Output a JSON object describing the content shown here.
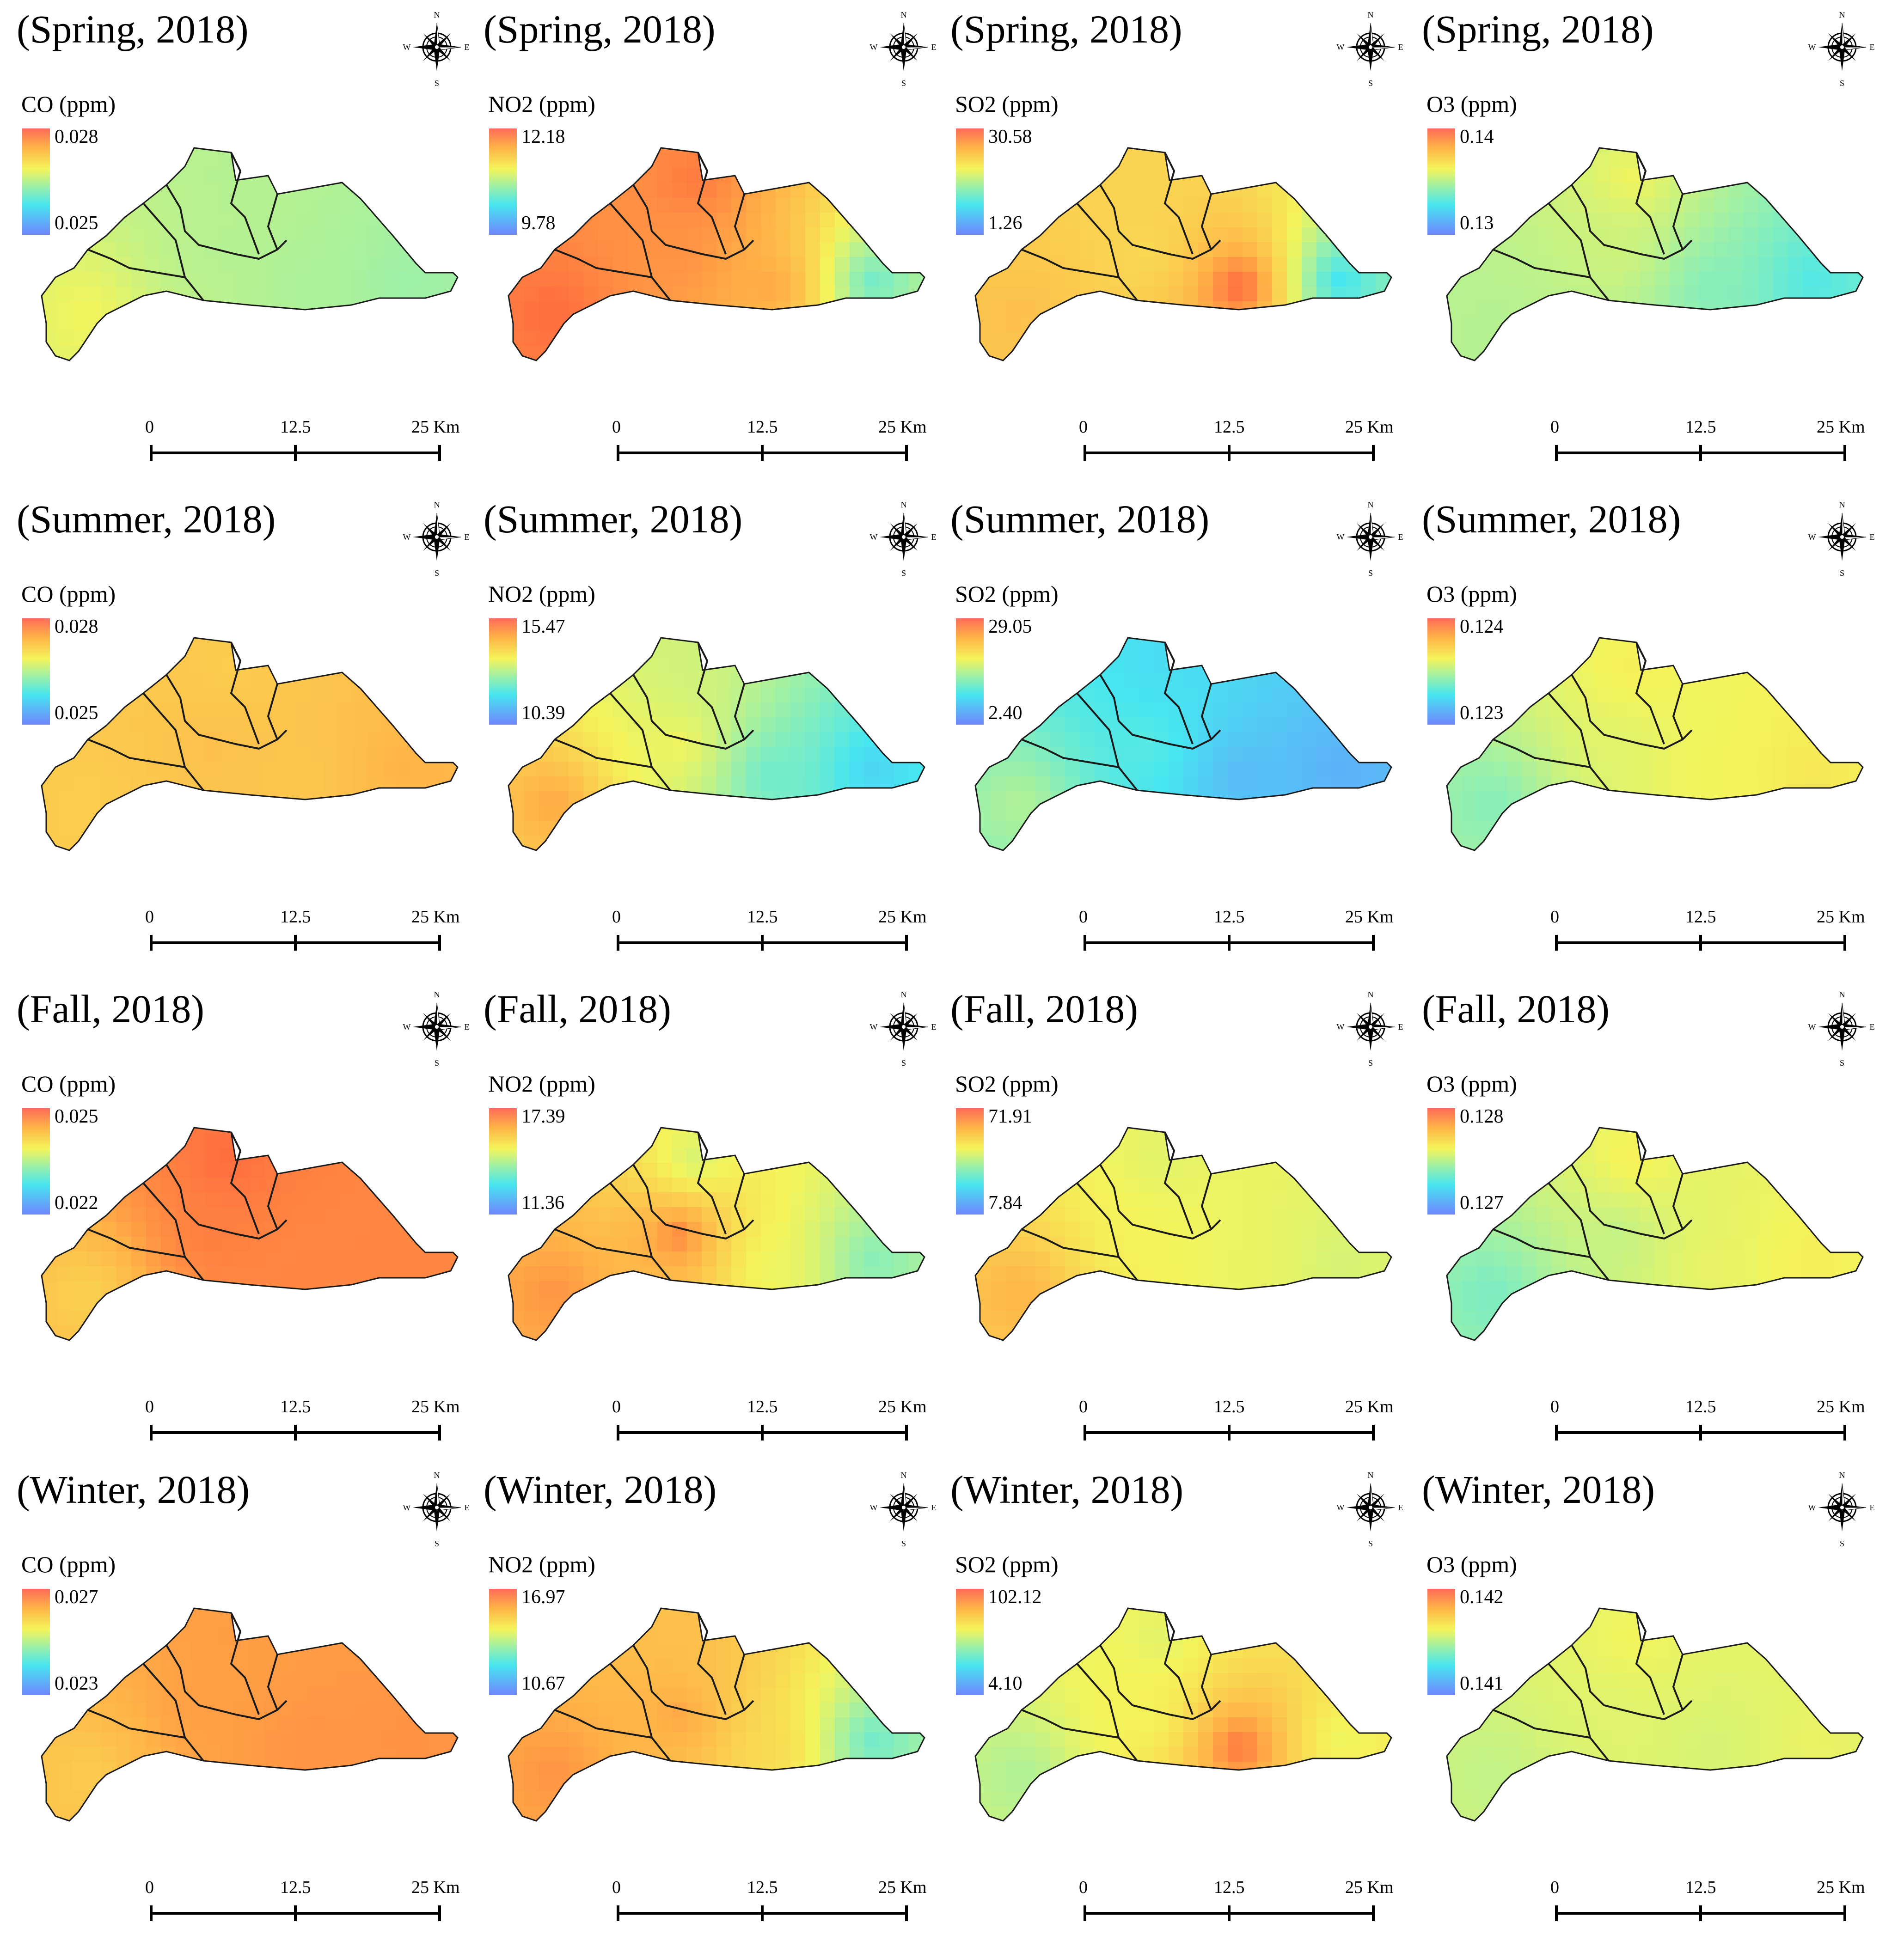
{
  "scale_bar": {
    "label_0": "0",
    "label_mid": "12.5",
    "label_end": "25 Km"
  },
  "compass": {
    "n": "N",
    "s": "S",
    "e": "E",
    "w": "W"
  },
  "boundary_color": "#1a1a1a",
  "panels": [
    {
      "season": "(Spring, 2018)",
      "legend_title": "CO (ppm)",
      "max": "0.028",
      "min": "0.025",
      "field": "co_spring"
    },
    {
      "season": "(Spring, 2018)",
      "legend_title": "NO2 (ppm)",
      "max": "12.18",
      "min": "9.78",
      "field": "no2_spring"
    },
    {
      "season": "(Spring, 2018)",
      "legend_title": "SO2 (ppm)",
      "max": "30.58",
      "min": "1.26",
      "field": "so2_spring"
    },
    {
      "season": "(Spring, 2018)",
      "legend_title": "O3 (ppm)",
      "max": "0.14",
      "min": "0.13",
      "field": "o3_spring"
    },
    {
      "season": "(Summer, 2018)",
      "legend_title": "CO (ppm)",
      "max": "0.028",
      "min": "0.025",
      "field": "co_summer"
    },
    {
      "season": "(Summer, 2018)",
      "legend_title": "NO2 (ppm)",
      "max": "15.47",
      "min": "10.39",
      "field": "no2_summer"
    },
    {
      "season": "(Summer, 2018)",
      "legend_title": "SO2 (ppm)",
      "max": "29.05",
      "min": "2.40",
      "field": "so2_summer"
    },
    {
      "season": "(Summer, 2018)",
      "legend_title": "O3 (ppm)",
      "max": "0.124",
      "min": "0.123",
      "field": "o3_summer"
    },
    {
      "season": "(Fall, 2018)",
      "legend_title": "CO (ppm)",
      "max": "0.025",
      "min": "0.022",
      "field": "co_fall"
    },
    {
      "season": "(Fall, 2018)",
      "legend_title": "NO2 (ppm)",
      "max": "17.39",
      "min": "11.36",
      "field": "no2_fall"
    },
    {
      "season": "(Fall, 2018)",
      "legend_title": "SO2 (ppm)",
      "max": "71.91",
      "min": "7.84",
      "field": "so2_fall"
    },
    {
      "season": "(Fall, 2018)",
      "legend_title": "O3 (ppm)",
      "max": "0.128",
      "min": "0.127",
      "field": "o3_fall"
    },
    {
      "season": "(Winter, 2018)",
      "legend_title": "CO (ppm)",
      "max": "0.027",
      "min": "0.023",
      "field": "co_winter"
    },
    {
      "season": "(Winter, 2018)",
      "legend_title": "NO2 (ppm)",
      "max": "16.97",
      "min": "10.67",
      "field": "no2_winter"
    },
    {
      "season": "(Winter, 2018)",
      "legend_title": "SO2 (ppm)",
      "max": "102.12",
      "min": "4.10",
      "field": "so2_winter"
    },
    {
      "season": "(Winter, 2018)",
      "legend_title": "O3 (ppm)",
      "max": "0.142",
      "min": "0.141",
      "field": "o3_winter"
    }
  ],
  "fields": {
    "co_spring": {
      "w": 0.62,
      "c": 0.5,
      "e": 0.45,
      "n": 0.5,
      "sc": 0.48
    },
    "no2_spring": {
      "w": 0.95,
      "c": 0.88,
      "e": 0.35,
      "n": 0.93,
      "sc": 0.85
    },
    "so2_spring": {
      "w": 0.78,
      "c": 0.7,
      "e": 0.25,
      "n": 0.72,
      "sc": 0.98
    },
    "o3_spring": {
      "w": 0.5,
      "c": 0.55,
      "e": 0.3,
      "n": 0.62,
      "sc": 0.4
    },
    "co_summer": {
      "w": 0.74,
      "c": 0.78,
      "e": 0.82,
      "n": 0.74,
      "sc": 0.76
    },
    "no2_summer": {
      "w": 0.85,
      "c": 0.62,
      "e": 0.22,
      "n": 0.55,
      "sc": 0.35
    },
    "so2_summer": {
      "w": 0.5,
      "c": 0.32,
      "e": 0.12,
      "n": 0.25,
      "sc": 0.15
    },
    "o3_summer": {
      "w": 0.4,
      "c": 0.58,
      "e": 0.66,
      "n": 0.64,
      "sc": 0.62
    },
    "co_fall": {
      "w": 0.72,
      "c": 0.92,
      "e": 0.9,
      "n": 0.95,
      "sc": 0.9
    },
    "no2_fall": {
      "w": 0.88,
      "c": 0.92,
      "e": 0.4,
      "n": 0.55,
      "sc": 0.6
    },
    "so2_fall": {
      "w": 0.82,
      "c": 0.62,
      "e": 0.56,
      "n": 0.58,
      "sc": 0.6
    },
    "o3_fall": {
      "w": 0.38,
      "c": 0.52,
      "e": 0.64,
      "n": 0.64,
      "sc": 0.6
    },
    "co_winter": {
      "w": 0.74,
      "c": 0.86,
      "e": 0.88,
      "n": 0.86,
      "sc": 0.88
    },
    "no2_winter": {
      "w": 0.88,
      "c": 0.85,
      "e": 0.35,
      "n": 0.78,
      "sc": 0.7
    },
    "so2_winter": {
      "w": 0.48,
      "c": 0.62,
      "e": 0.6,
      "n": 0.58,
      "sc": 0.95
    },
    "o3_winter": {
      "w": 0.52,
      "c": 0.58,
      "e": 0.6,
      "n": 0.62,
      "sc": 0.56
    }
  }
}
